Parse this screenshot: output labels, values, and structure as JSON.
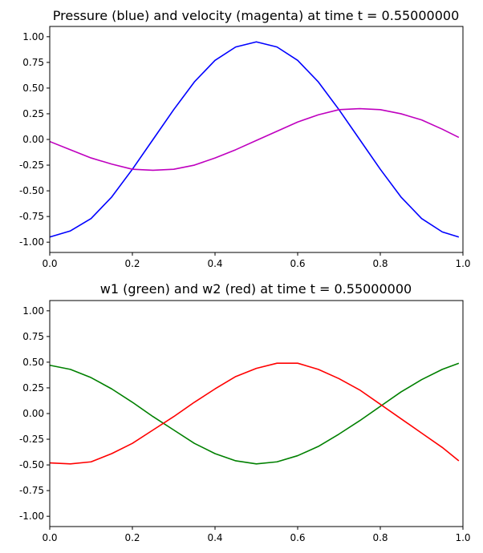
{
  "chart_data": [
    {
      "type": "line",
      "title": "Pressure (blue) and velocity (magenta) at time t =     0.55000000",
      "xlabel": "",
      "ylabel": "",
      "xlim": [
        0,
        1
      ],
      "ylim": [
        -1.1,
        1.1
      ],
      "xticks": [
        "0.0",
        "0.2",
        "0.4",
        "0.6",
        "0.8",
        "1.0"
      ],
      "yticks": [
        "-1.00",
        "-0.75",
        "-0.50",
        "-0.25",
        "0.00",
        "0.25",
        "0.50",
        "0.75",
        "1.00"
      ],
      "grid": false,
      "series": [
        {
          "color": "#0000ff",
          "x": [
            0.0,
            0.05,
            0.1,
            0.15,
            0.2,
            0.25,
            0.3,
            0.35,
            0.4,
            0.45,
            0.5,
            0.55,
            0.6,
            0.65,
            0.7,
            0.75,
            0.8,
            0.85,
            0.9,
            0.95,
            0.99
          ],
          "y": [
            -0.95,
            -0.89,
            -0.77,
            -0.56,
            -0.29,
            0.0,
            0.29,
            0.56,
            0.77,
            0.9,
            0.95,
            0.9,
            0.77,
            0.56,
            0.29,
            0.0,
            -0.29,
            -0.56,
            -0.77,
            -0.9,
            -0.95
          ]
        },
        {
          "color": "#bf00bf",
          "x": [
            0.0,
            0.05,
            0.1,
            0.15,
            0.2,
            0.25,
            0.3,
            0.35,
            0.4,
            0.45,
            0.5,
            0.55,
            0.6,
            0.65,
            0.7,
            0.75,
            0.8,
            0.85,
            0.9,
            0.95,
            0.99
          ],
          "y": [
            -0.02,
            -0.1,
            -0.18,
            -0.24,
            -0.29,
            -0.3,
            -0.29,
            -0.25,
            -0.18,
            -0.1,
            -0.01,
            0.08,
            0.17,
            0.24,
            0.29,
            0.3,
            0.29,
            0.25,
            0.19,
            0.1,
            0.02
          ]
        }
      ]
    },
    {
      "type": "line",
      "title": "w1 (green) and w2 (red) at time t =     0.55000000",
      "xlabel": "",
      "ylabel": "",
      "xlim": [
        0,
        1
      ],
      "ylim": [
        -1.1,
        1.1
      ],
      "xticks": [
        "0.0",
        "0.2",
        "0.4",
        "0.6",
        "0.8",
        "1.0"
      ],
      "yticks": [
        "-1.00",
        "-0.75",
        "-0.50",
        "-0.25",
        "0.00",
        "0.25",
        "0.50",
        "0.75",
        "1.00"
      ],
      "grid": false,
      "series": [
        {
          "color": "#008000",
          "x": [
            0.0,
            0.05,
            0.1,
            0.15,
            0.2,
            0.25,
            0.3,
            0.35,
            0.4,
            0.45,
            0.5,
            0.55,
            0.6,
            0.65,
            0.7,
            0.75,
            0.8,
            0.85,
            0.9,
            0.95,
            0.99
          ],
          "y": [
            0.47,
            0.43,
            0.35,
            0.24,
            0.11,
            -0.03,
            -0.16,
            -0.29,
            -0.39,
            -0.46,
            -0.49,
            -0.47,
            -0.41,
            -0.32,
            -0.2,
            -0.07,
            0.07,
            0.21,
            0.33,
            0.43,
            0.49
          ]
        },
        {
          "color": "#ff0000",
          "x": [
            0.0,
            0.05,
            0.1,
            0.15,
            0.2,
            0.25,
            0.3,
            0.35,
            0.4,
            0.45,
            0.5,
            0.55,
            0.6,
            0.65,
            0.7,
            0.75,
            0.8,
            0.85,
            0.9,
            0.95,
            0.99
          ],
          "y": [
            -0.48,
            -0.49,
            -0.47,
            -0.39,
            -0.29,
            -0.16,
            -0.03,
            0.11,
            0.24,
            0.36,
            0.44,
            0.49,
            0.49,
            0.43,
            0.34,
            0.23,
            0.09,
            -0.05,
            -0.19,
            -0.33,
            -0.46
          ]
        }
      ]
    }
  ]
}
